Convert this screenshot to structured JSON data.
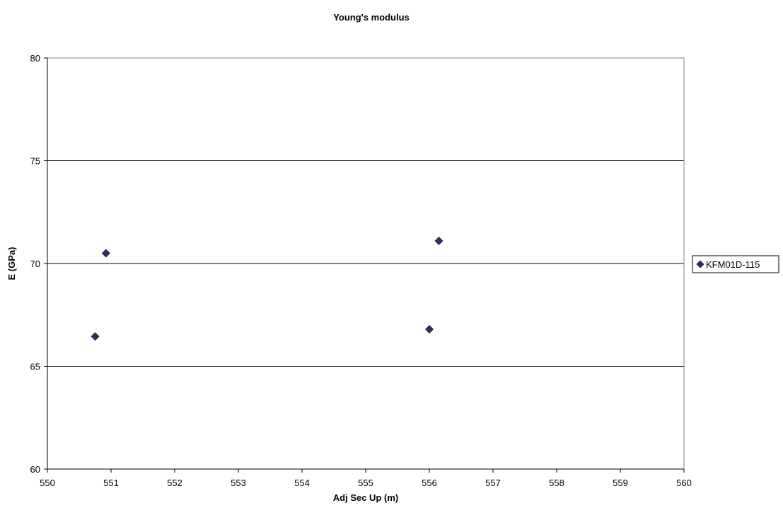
{
  "chart_data": {
    "type": "scatter",
    "title": "Young's modulus",
    "xlabel": "Adj Sec Up (m)",
    "ylabel": "E (GPa)",
    "xlim": [
      550,
      560
    ],
    "ylim": [
      60,
      80
    ],
    "x_ticks": [
      550,
      551,
      552,
      553,
      554,
      555,
      556,
      557,
      558,
      559,
      560
    ],
    "y_ticks": [
      60,
      65,
      70,
      75,
      80
    ],
    "grid": "horizontal",
    "legend_position": "right",
    "series": [
      {
        "name": "KFM01D-115",
        "color": "#3b2a6b",
        "marker": "diamond",
        "points": [
          {
            "x": 550.75,
            "y": 66.45
          },
          {
            "x": 550.92,
            "y": 70.5
          },
          {
            "x": 556.0,
            "y": 66.8
          },
          {
            "x": 556.15,
            "y": 71.1
          }
        ]
      }
    ]
  }
}
